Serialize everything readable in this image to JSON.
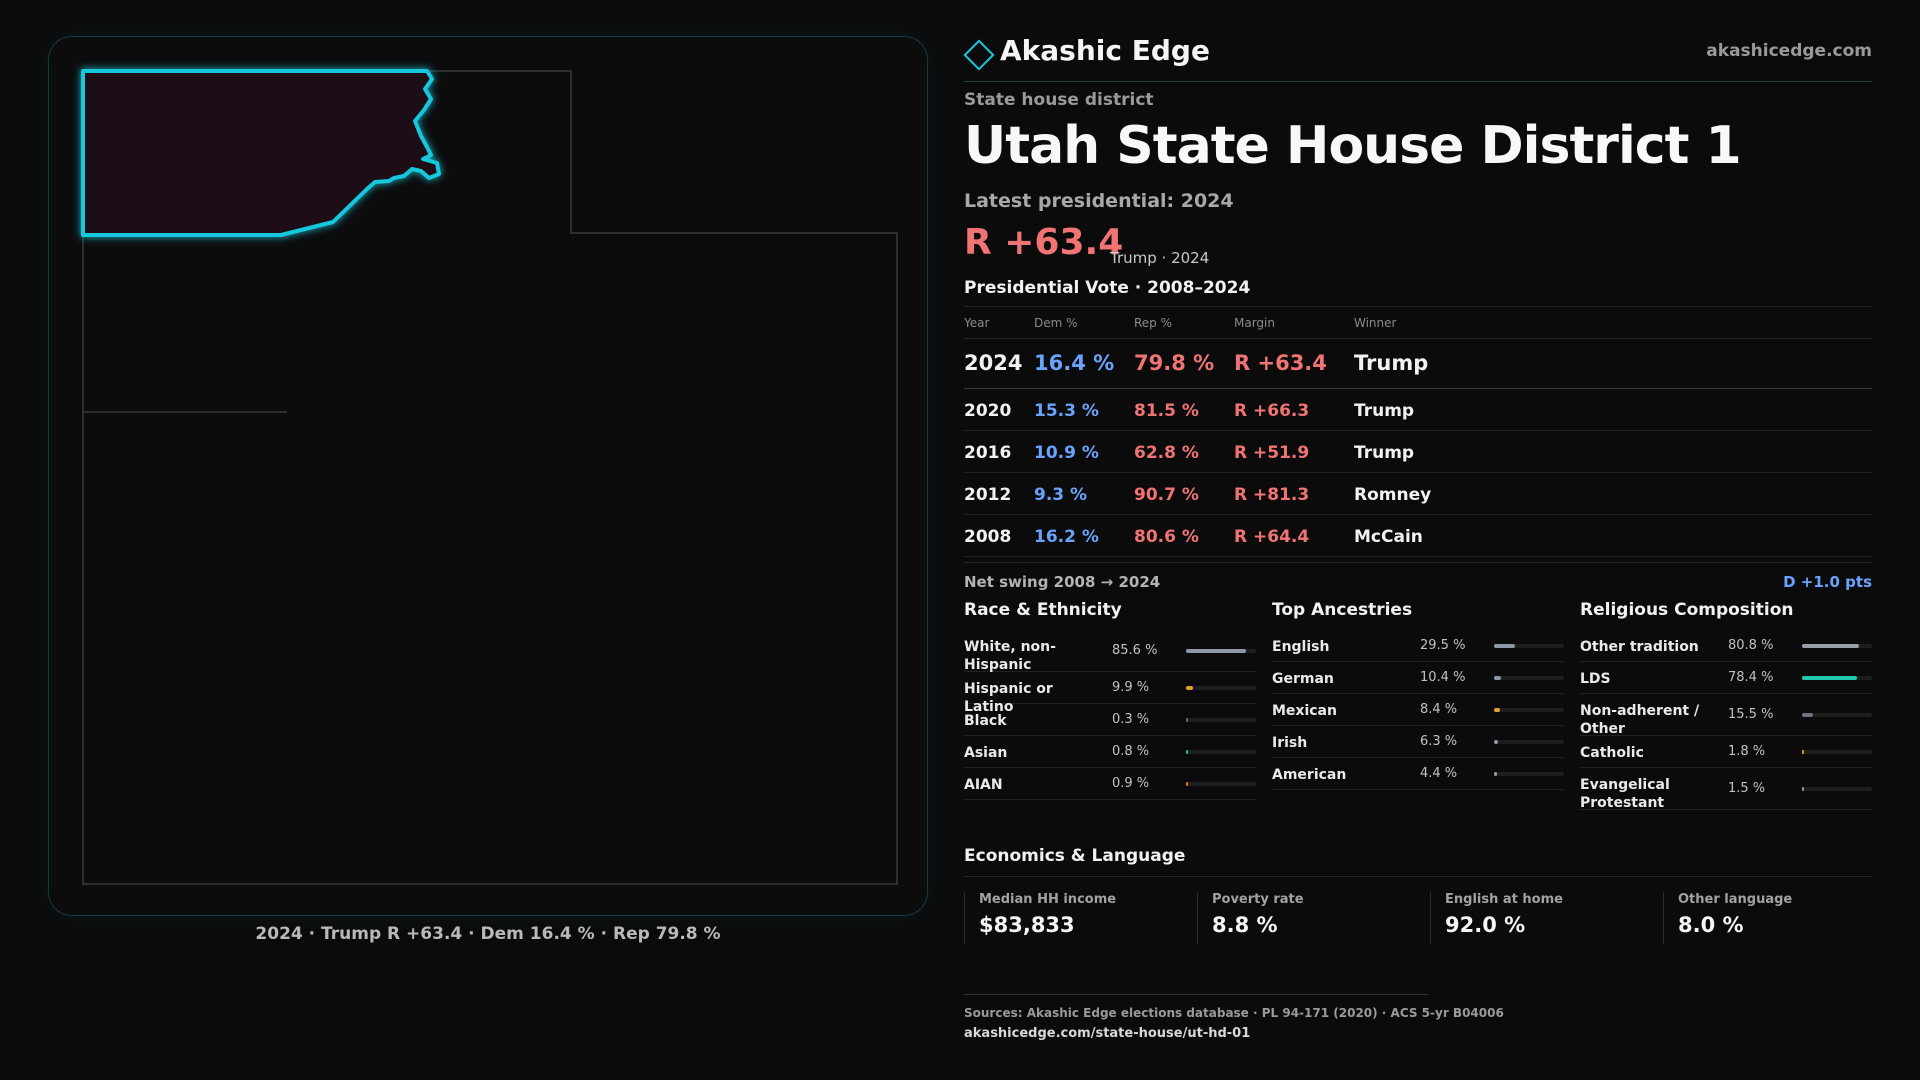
{
  "brand": {
    "name": "Akashic Edge",
    "url": "akashicedge.com"
  },
  "district": {
    "kicker": "State house district",
    "title": "Utah State House District 1",
    "latest_label": "Latest presidential: 2024",
    "margin": "R +63.4",
    "margin_sub": "Trump · 2024"
  },
  "map": {
    "caption": "2024 · Trump R +63.4 · Dem 16.4 % · Rep 79.8 %"
  },
  "results": {
    "title": "Presidential Vote · 2008–2024",
    "headers": {
      "year": "Year",
      "dem": "Dem %",
      "rep": "Rep %",
      "margin": "Margin",
      "winner": "Winner"
    },
    "rows": [
      {
        "year": "2024",
        "dem": "16.4 %",
        "rep": "79.8 %",
        "margin": "R +63.4",
        "winner": "Trump"
      },
      {
        "year": "2020",
        "dem": "15.3 %",
        "rep": "81.5 %",
        "margin": "R +66.3",
        "winner": "Trump"
      },
      {
        "year": "2016",
        "dem": "10.9 %",
        "rep": "62.8 %",
        "margin": "R +51.9",
        "winner": "Trump"
      },
      {
        "year": "2012",
        "dem": "9.3 %",
        "rep": "90.7 %",
        "margin": "R +81.3",
        "winner": "Romney"
      },
      {
        "year": "2008",
        "dem": "16.2 %",
        "rep": "80.6 %",
        "margin": "R +64.4",
        "winner": "McCain"
      }
    ]
  },
  "swing": {
    "label": "Net swing 2008 → 2024",
    "value": "D +1.0 pts"
  },
  "race": {
    "title": "Race & Ethnicity",
    "items": [
      {
        "label": "White, non-Hispanic",
        "value": "85.6 %",
        "pct": 85.6,
        "color": "#8d97a6"
      },
      {
        "label": "Hispanic or Latino",
        "value": "9.9 %",
        "pct": 9.9,
        "color": "#e0a030"
      },
      {
        "label": "Black",
        "value": "0.3 %",
        "pct": 0.3,
        "color": "#5b6b8a"
      },
      {
        "label": "Asian",
        "value": "0.8 %",
        "pct": 0.8,
        "color": "#1fbfa3"
      },
      {
        "label": "AIAN",
        "value": "0.9 %",
        "pct": 0.9,
        "color": "#d77a2a"
      }
    ]
  },
  "ancestry": {
    "title": "Top Ancestries",
    "items": [
      {
        "label": "English",
        "value": "29.5 %",
        "pct": 29.5,
        "color": "#8d97a6"
      },
      {
        "label": "German",
        "value": "10.4 %",
        "pct": 10.4,
        "color": "#8d97a6"
      },
      {
        "label": "Mexican",
        "value": "8.4 %",
        "pct": 8.4,
        "color": "#e0a030"
      },
      {
        "label": "Irish",
        "value": "6.3 %",
        "pct": 6.3,
        "color": "#8d97a6"
      },
      {
        "label": "American",
        "value": "4.4 %",
        "pct": 4.4,
        "color": "#8d97a6"
      }
    ]
  },
  "religion": {
    "title": "Religious Composition",
    "items": [
      {
        "label": "Other tradition",
        "value": "80.8 %",
        "pct": 80.8,
        "color": "#9aa0aa"
      },
      {
        "label": "LDS",
        "value": "78.4 %",
        "pct": 78.4,
        "color": "#1fc9b0"
      },
      {
        "label": "Non-adherent / Other",
        "value": "15.5 %",
        "pct": 15.5,
        "color": "#6d7480"
      },
      {
        "label": "Catholic",
        "value": "1.8 %",
        "pct": 1.8,
        "color": "#e0a030"
      },
      {
        "label": "Evangelical Protestant",
        "value": "1.5 %",
        "pct": 1.5,
        "color": "#8d97a6"
      }
    ]
  },
  "economics": {
    "title": "Economics & Language",
    "items": [
      {
        "label": "Median HH income",
        "value": "$83,833"
      },
      {
        "label": "Poverty rate",
        "value": "8.8 %"
      },
      {
        "label": "English at home",
        "value": "92.0 %"
      },
      {
        "label": "Other language",
        "value": "8.0 %"
      }
    ]
  },
  "footer": {
    "sources": "Sources: Akashic Edge elections database · PL 94-171 (2020) · ACS 5-yr B04006",
    "permalink": "akashicedge.com/state-house/ut-hd-01"
  },
  "colors": {
    "accent": "#19c7dd",
    "dem": "#6aa3ff",
    "rep": "#f07474",
    "district_fill": "#1f1012"
  }
}
